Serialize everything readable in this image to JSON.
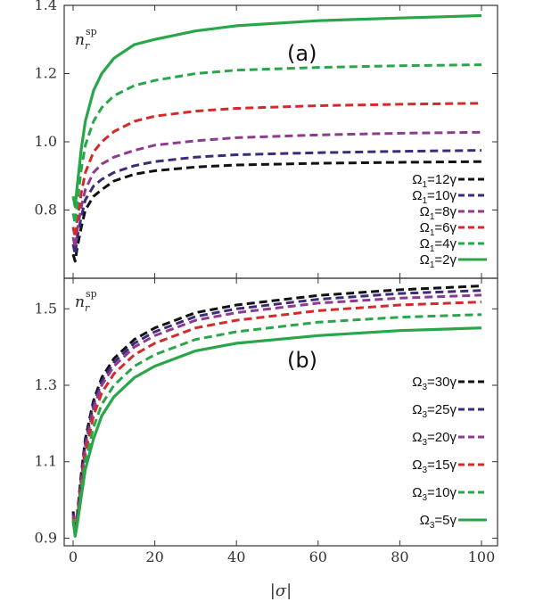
{
  "figure": {
    "xlabel": "|σ|",
    "x_ticks": [
      "0",
      "20",
      "40",
      "60",
      "80",
      "100"
    ]
  },
  "chart_data": [
    {
      "type": "line",
      "panel_label": "(a)",
      "ylabel": "n_r^sp",
      "ylabel_main": "n",
      "ylabel_sub": "r",
      "ylabel_sup": "sp",
      "xlabel": "|σ|",
      "xlim": [
        0,
        100
      ],
      "ylim": [
        0.6,
        1.4
      ],
      "y_ticks": [
        "0.8",
        "1.0",
        "1.2",
        "1.4"
      ],
      "legend_position": "right",
      "series": [
        {
          "name": "Ω1=12γ",
          "label_main": "Ω",
          "label_sub": "1",
          "label_rest": "=12γ",
          "color": "#111111",
          "style": "dashed",
          "x": [
            0,
            0.5,
            1,
            2,
            3,
            5,
            7,
            10,
            15,
            20,
            30,
            40,
            60,
            80,
            100
          ],
          "y": [
            0.67,
            0.65,
            0.69,
            0.75,
            0.8,
            0.84,
            0.86,
            0.885,
            0.905,
            0.915,
            0.926,
            0.932,
            0.937,
            0.94,
            0.942
          ]
        },
        {
          "name": "Ω1=10γ",
          "label_main": "Ω",
          "label_sub": "1",
          "label_rest": "=10γ",
          "color": "#3d2b7a",
          "style": "dashed",
          "x": [
            0,
            0.5,
            1,
            2,
            3,
            5,
            7,
            10,
            15,
            20,
            30,
            40,
            60,
            80,
            100
          ],
          "y": [
            0.7,
            0.67,
            0.72,
            0.78,
            0.83,
            0.87,
            0.89,
            0.91,
            0.93,
            0.942,
            0.955,
            0.962,
            0.968,
            0.972,
            0.975
          ]
        },
        {
          "name": "Ω1=8γ",
          "label_main": "Ω",
          "label_sub": "1",
          "label_rest": "=8γ",
          "color": "#8e3a8e",
          "style": "dashed",
          "x": [
            0,
            0.5,
            1,
            2,
            3,
            5,
            7,
            10,
            15,
            20,
            30,
            40,
            60,
            80,
            100
          ],
          "y": [
            0.72,
            0.69,
            0.74,
            0.81,
            0.86,
            0.91,
            0.935,
            0.955,
            0.975,
            0.99,
            1.003,
            1.012,
            1.02,
            1.025,
            1.028
          ]
        },
        {
          "name": "Ω1=6γ",
          "label_main": "Ω",
          "label_sub": "1",
          "label_rest": "=6γ",
          "color": "#d42a2a",
          "style": "dashed",
          "x": [
            0,
            0.5,
            1,
            2,
            3,
            5,
            7,
            10,
            15,
            20,
            30,
            40,
            60,
            80,
            100
          ],
          "y": [
            0.75,
            0.72,
            0.77,
            0.85,
            0.91,
            0.97,
            1.0,
            1.03,
            1.06,
            1.075,
            1.09,
            1.098,
            1.106,
            1.11,
            1.113
          ]
        },
        {
          "name": "Ω1=4γ",
          "label_main": "Ω",
          "label_sub": "1",
          "label_rest": "=4γ",
          "color": "#2aa64a",
          "style": "dashed",
          "x": [
            0,
            0.5,
            1,
            2,
            3,
            5,
            7,
            10,
            15,
            20,
            30,
            40,
            60,
            80,
            100
          ],
          "y": [
            0.79,
            0.76,
            0.82,
            0.92,
            0.99,
            1.06,
            1.1,
            1.135,
            1.165,
            1.18,
            1.2,
            1.21,
            1.218,
            1.223,
            1.226
          ]
        },
        {
          "name": "Ω1=2γ",
          "label_main": "Ω",
          "label_sub": "1",
          "label_rest": "=2γ",
          "color": "#2aa64a",
          "style": "solid",
          "x": [
            0,
            0.5,
            1,
            2,
            3,
            5,
            7,
            10,
            15,
            20,
            30,
            40,
            60,
            80,
            100
          ],
          "y": [
            0.84,
            0.81,
            0.87,
            0.98,
            1.06,
            1.15,
            1.2,
            1.245,
            1.285,
            1.3,
            1.325,
            1.34,
            1.355,
            1.363,
            1.37
          ]
        }
      ]
    },
    {
      "type": "line",
      "panel_label": "(b)",
      "ylabel": "n_r^sp",
      "ylabel_main": "n",
      "ylabel_sub": "r",
      "ylabel_sup": "sp",
      "xlabel": "|σ|",
      "xlim": [
        0,
        100
      ],
      "ylim": [
        0.88,
        1.58
      ],
      "y_ticks": [
        "0.9",
        "1.1",
        "1.3",
        "1.5"
      ],
      "legend_position": "right",
      "series": [
        {
          "name": "Ω3=30γ",
          "label_main": "Ω",
          "label_sub": "3",
          "label_rest": "=30γ",
          "color": "#111111",
          "style": "dashed",
          "x": [
            0,
            0.5,
            1,
            2,
            3,
            5,
            7,
            10,
            15,
            20,
            30,
            40,
            60,
            80,
            100
          ],
          "y": [
            0.97,
            0.93,
            0.96,
            1.07,
            1.16,
            1.26,
            1.32,
            1.37,
            1.42,
            1.45,
            1.49,
            1.51,
            1.535,
            1.55,
            1.56
          ]
        },
        {
          "name": "Ω3=25γ",
          "label_main": "Ω",
          "label_sub": "3",
          "label_rest": "=25γ",
          "color": "#3d2b7a",
          "style": "dashed",
          "x": [
            0,
            0.5,
            1,
            2,
            3,
            5,
            7,
            10,
            15,
            20,
            30,
            40,
            60,
            80,
            100
          ],
          "y": [
            0.965,
            0.925,
            0.955,
            1.06,
            1.15,
            1.25,
            1.31,
            1.36,
            1.41,
            1.44,
            1.48,
            1.5,
            1.525,
            1.54,
            1.548
          ]
        },
        {
          "name": "Ω3=20γ",
          "label_main": "Ω",
          "label_sub": "3",
          "label_rest": "=20γ",
          "color": "#8e3a8e",
          "style": "dashed",
          "x": [
            0,
            0.5,
            1,
            2,
            3,
            5,
            7,
            10,
            15,
            20,
            30,
            40,
            60,
            80,
            100
          ],
          "y": [
            0.96,
            0.92,
            0.95,
            1.05,
            1.14,
            1.24,
            1.3,
            1.35,
            1.4,
            1.43,
            1.47,
            1.49,
            1.515,
            1.528,
            1.536
          ]
        },
        {
          "name": "Ω3=15γ",
          "label_main": "Ω",
          "label_sub": "3",
          "label_rest": "=15γ",
          "color": "#d42a2a",
          "style": "dashed",
          "x": [
            0,
            0.5,
            1,
            2,
            3,
            5,
            7,
            10,
            15,
            20,
            30,
            40,
            60,
            80,
            100
          ],
          "y": [
            0.955,
            0.915,
            0.945,
            1.04,
            1.12,
            1.22,
            1.28,
            1.33,
            1.38,
            1.41,
            1.45,
            1.47,
            1.495,
            1.51,
            1.518
          ]
        },
        {
          "name": "Ω3=10γ",
          "label_main": "Ω",
          "label_sub": "3",
          "label_rest": "=10γ",
          "color": "#2aa64a",
          "style": "dashed",
          "x": [
            0,
            0.5,
            1,
            2,
            3,
            5,
            7,
            10,
            15,
            20,
            30,
            40,
            60,
            80,
            100
          ],
          "y": [
            0.95,
            0.91,
            0.94,
            1.03,
            1.1,
            1.19,
            1.25,
            1.3,
            1.35,
            1.38,
            1.42,
            1.44,
            1.465,
            1.478,
            1.485
          ]
        },
        {
          "name": "Ω3=5γ",
          "label_main": "Ω",
          "label_sub": "3",
          "label_rest": "=5γ",
          "color": "#2aa64a",
          "style": "solid",
          "x": [
            0,
            0.5,
            1,
            2,
            3,
            5,
            7,
            10,
            15,
            20,
            30,
            40,
            60,
            80,
            100
          ],
          "y": [
            0.945,
            0.905,
            0.935,
            1.01,
            1.08,
            1.16,
            1.22,
            1.27,
            1.32,
            1.35,
            1.39,
            1.41,
            1.43,
            1.443,
            1.45
          ]
        }
      ]
    }
  ]
}
